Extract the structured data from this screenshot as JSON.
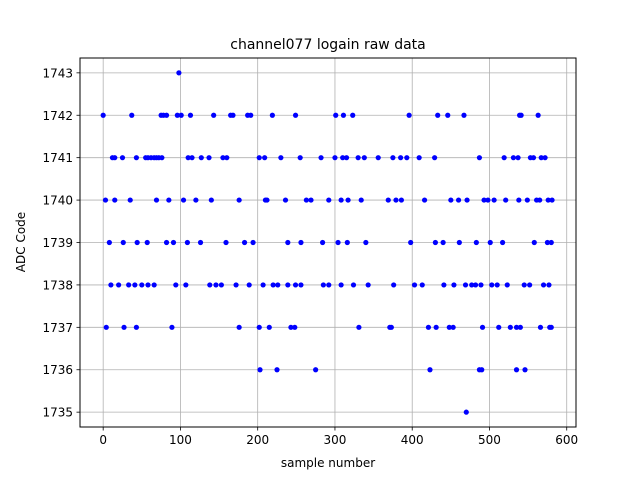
{
  "chart_data": {
    "type": "scatter",
    "title": "channel077 logain raw data",
    "xlabel": "sample number",
    "ylabel": "ADC Code",
    "xlim": [
      -30,
      612
    ],
    "ylim": [
      1734.65,
      1743.35
    ],
    "xticks": [
      0,
      100,
      200,
      300,
      400,
      500,
      600
    ],
    "yticks": [
      1735,
      1736,
      1737,
      1738,
      1739,
      1740,
      1741,
      1742,
      1743
    ],
    "xtick_labels": [
      "0",
      "100",
      "200",
      "300",
      "400",
      "500",
      "600"
    ],
    "ytick_labels": [
      "1735",
      "1736",
      "1737",
      "1738",
      "1739",
      "1740",
      "1741",
      "1742",
      "1743"
    ],
    "grid": true,
    "marker_color": "#0000ff",
    "series": [
      {
        "x": [
          98,
          0,
          37,
          75,
          78,
          82,
          96,
          101,
          113,
          143,
          165,
          168,
          187,
          191,
          219,
          249,
          301,
          311,
          323,
          396,
          433,
          446,
          467,
          539,
          541,
          563,
          12,
          15,
          25,
          43,
          55,
          58,
          62,
          66,
          69,
          72,
          76,
          110,
          115,
          127,
          137,
          155,
          160,
          202,
          209,
          230,
          255,
          282,
          300,
          310,
          315,
          330,
          338,
          356,
          375,
          385,
          393,
          409,
          429,
          487,
          519,
          531,
          537,
          553,
          557,
          567,
          572,
          8,
          26,
          44,
          57,
          82,
          91,
          109,
          126,
          159,
          183,
          194,
          239,
          256,
          284,
          304,
          316,
          340,
          398,
          430,
          440,
          461,
          483,
          501,
          517,
          558,
          575,
          580,
          10,
          20,
          33,
          41,
          50,
          58,
          66,
          94,
          107,
          138,
          146,
          153,
          172,
          189,
          207,
          220,
          226,
          239,
          249,
          256,
          285,
          292,
          308,
          324,
          343,
          376,
          403,
          413,
          441,
          454,
          469,
          477,
          482,
          489,
          503,
          510,
          523,
          545,
          552,
          570,
          577,
          3,
          15,
          35,
          69,
          85,
          104,
          120,
          140,
          176,
          210,
          212,
          236,
          263,
          269,
          292,
          308,
          317,
          334,
          369,
          379,
          386,
          416,
          450,
          460,
          471,
          493,
          498,
          506,
          521,
          538,
          549,
          561,
          565,
          576,
          581,
          4,
          27,
          43,
          89,
          176,
          202,
          215,
          243,
          248,
          331,
          371,
          373,
          421,
          431,
          448,
          453,
          491,
          512,
          527,
          535,
          540,
          566,
          578,
          580,
          203,
          225,
          275,
          423,
          487,
          490,
          535,
          546,
          470
        ],
        "y": [
          1743,
          1742,
          1742,
          1742,
          1742,
          1742,
          1742,
          1742,
          1742,
          1742,
          1742,
          1742,
          1742,
          1742,
          1742,
          1742,
          1742,
          1742,
          1742,
          1742,
          1742,
          1742,
          1742,
          1742,
          1742,
          1742,
          1741,
          1741,
          1741,
          1741,
          1741,
          1741,
          1741,
          1741,
          1741,
          1741,
          1741,
          1741,
          1741,
          1741,
          1741,
          1741,
          1741,
          1741,
          1741,
          1741,
          1741,
          1741,
          1741,
          1741,
          1741,
          1741,
          1741,
          1741,
          1741,
          1741,
          1741,
          1741,
          1741,
          1741,
          1741,
          1741,
          1741,
          1741,
          1741,
          1741,
          1741,
          1739,
          1739,
          1739,
          1739,
          1739,
          1739,
          1739,
          1739,
          1739,
          1739,
          1739,
          1739,
          1739,
          1739,
          1739,
          1739,
          1739,
          1739,
          1739,
          1739,
          1739,
          1739,
          1739,
          1739,
          1739,
          1739,
          1739,
          1738,
          1738,
          1738,
          1738,
          1738,
          1738,
          1738,
          1738,
          1738,
          1738,
          1738,
          1738,
          1738,
          1738,
          1738,
          1738,
          1738,
          1738,
          1738,
          1738,
          1738,
          1738,
          1738,
          1738,
          1738,
          1738,
          1738,
          1738,
          1738,
          1738,
          1738,
          1738,
          1738,
          1738,
          1738,
          1738,
          1738,
          1738,
          1738,
          1738,
          1738,
          1740,
          1740,
          1740,
          1740,
          1740,
          1740,
          1740,
          1740,
          1740,
          1740,
          1740,
          1740,
          1740,
          1740,
          1740,
          1740,
          1740,
          1740,
          1740,
          1740,
          1740,
          1740,
          1740,
          1740,
          1740,
          1740,
          1740,
          1740,
          1740,
          1740,
          1740,
          1740,
          1740,
          1740,
          1740,
          1737,
          1737,
          1737,
          1737,
          1737,
          1737,
          1737,
          1737,
          1737,
          1737,
          1737,
          1737,
          1737,
          1737,
          1737,
          1737,
          1737,
          1737,
          1737,
          1737,
          1737,
          1737,
          1737,
          1737,
          1736,
          1736,
          1736,
          1736,
          1736,
          1736,
          1736,
          1736,
          1735
        ]
      }
    ]
  }
}
